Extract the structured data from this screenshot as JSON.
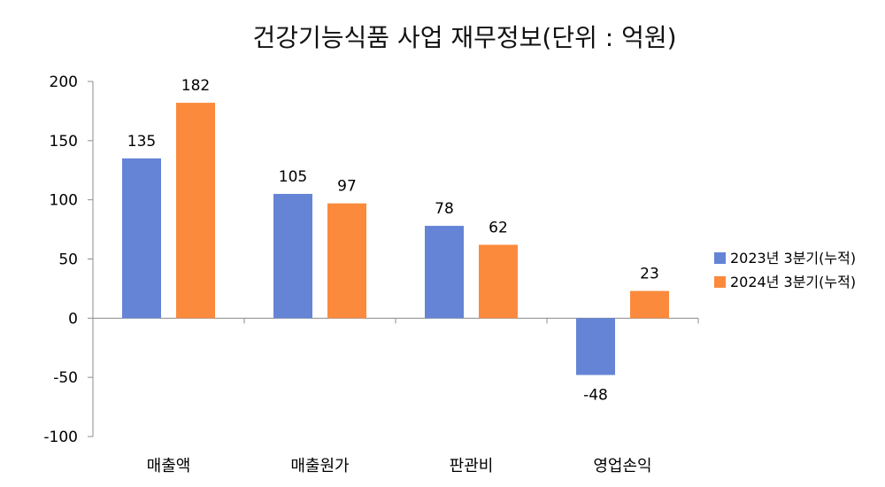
{
  "chart_data": {
    "type": "bar",
    "title": "건강기능식품 사업 재무정보(단위 : 억원)",
    "categories": [
      "매출액",
      "매출원가",
      "판관비",
      "영업손익"
    ],
    "series": [
      {
        "name": "2023년 3분기(누적)",
        "color": "#6584d6",
        "values": [
          135,
          105,
          78,
          -48
        ]
      },
      {
        "name": "2024년 3분기(누적)",
        "color": "#fb8a3c",
        "values": [
          182,
          97,
          62,
          23
        ]
      }
    ],
    "yticks": [
      "200",
      "150",
      "100",
      "50",
      "0",
      "-50",
      "-100"
    ],
    "ylim": [
      -100,
      200
    ],
    "xlabel": "",
    "ylabel": "",
    "grid": false,
    "legend_position": "right"
  }
}
